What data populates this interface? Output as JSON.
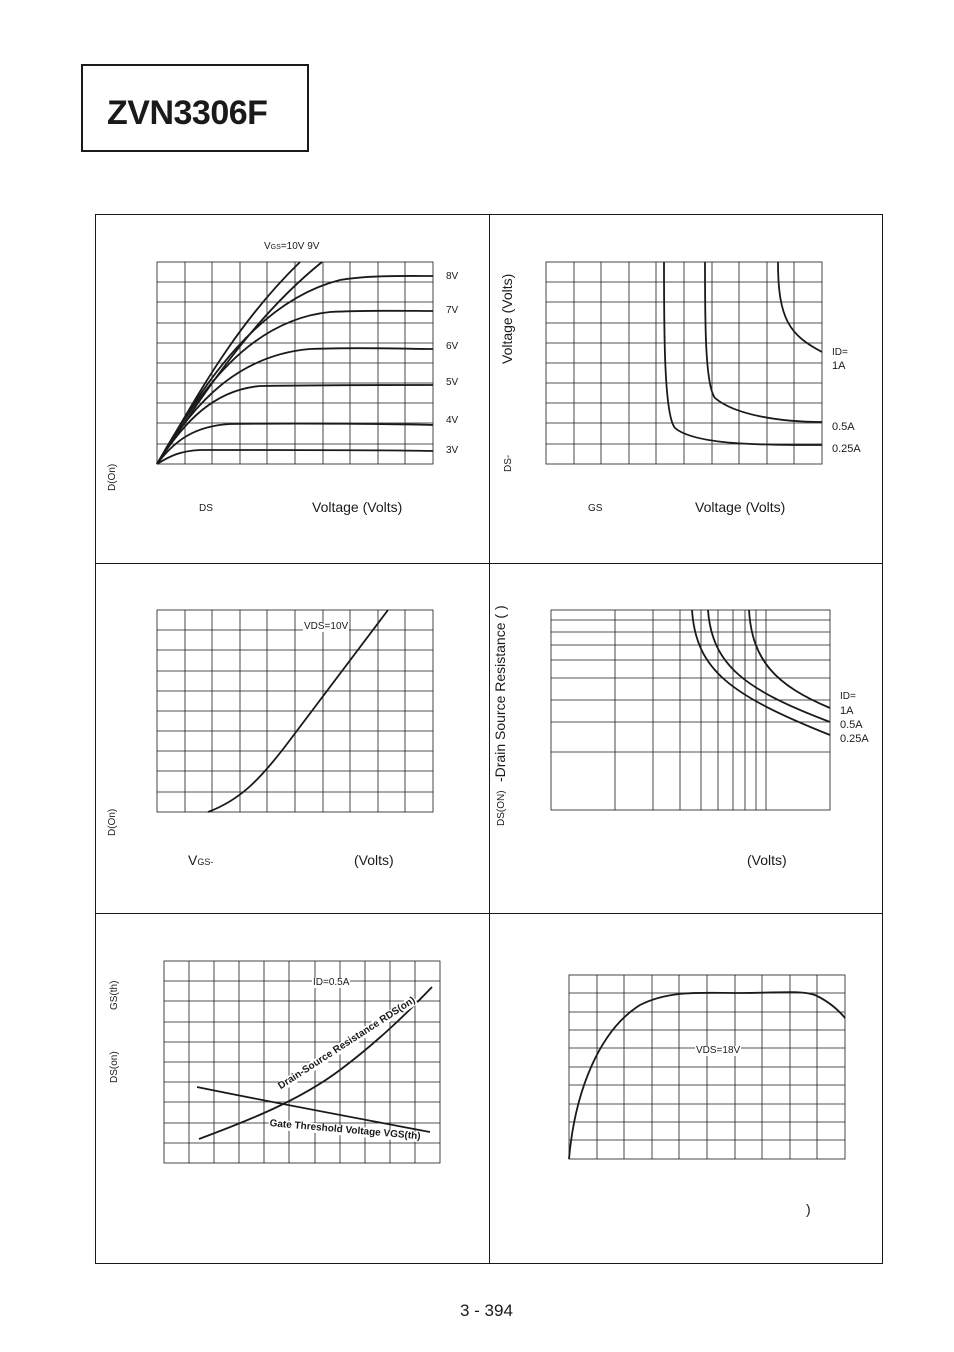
{
  "header": {
    "part_number": "ZVN3306F"
  },
  "panels": {
    "p1": {
      "x_label_sub": "DS",
      "x_label": "Voltage (Volts)",
      "y_label": "D(On)",
      "vgs_top_label_prefix": "V",
      "vgs_top_label_sub": "GS",
      "vgs_top_label_suffix": "=10V  9V",
      "curve_labels": [
        "8V",
        "7V",
        "6V",
        "5V",
        "4V",
        "3V"
      ]
    },
    "p2": {
      "x_label_sub": "GS",
      "x_label": "Voltage (Volts)",
      "y_label_main": "Voltage (Volts)",
      "y_label_sub": "DS-",
      "id_label": "ID=",
      "curve_labels": [
        "1A",
        "0.5A",
        "0.25A"
      ]
    },
    "p3": {
      "x_label_prefix": "V",
      "x_label_sub": "GS-",
      "x_label_units": "(Volts)",
      "y_label": "D(On)",
      "vds_label": "VDS=10V"
    },
    "p4": {
      "y_label_sub": "DS(ON)",
      "y_label_main": "-Drain Source Resistance (   )",
      "x_label_units": "(Volts)",
      "id_label": "ID=",
      "curve_labels": [
        "1A",
        "0.5A",
        "0.25A"
      ]
    },
    "p5": {
      "y_label_1": "GS(th)",
      "y_label_2": "DS(on)",
      "id_label": "ID=0.5A",
      "curve_label_1": "Drain-Source Resistance RDS(on)",
      "curve_label_2": "Gate Threshold Voltage VGS(th)"
    },
    "p6": {
      "vds_label": "VDS=18V",
      "x_label_paren": ")"
    }
  },
  "footer": {
    "page_number": "3 - 394"
  }
}
